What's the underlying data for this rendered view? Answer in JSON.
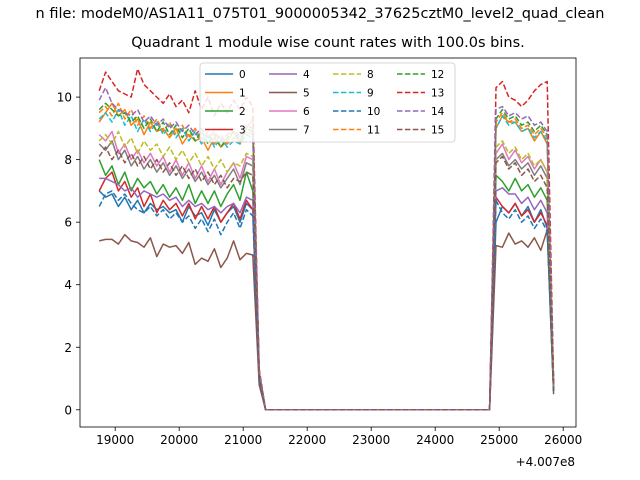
{
  "figure": {
    "suptitle": "n file: modeM0/AS1A11_075T01_9000005342_37625cztM0_level2_quad_clean",
    "offset_label": "+4.007e8"
  },
  "chart_data": {
    "type": "line",
    "title": "Quadrant 1 module wise count rates with 100.0s bins.",
    "xlabel": "",
    "ylabel": "",
    "x_offset": 400700000,
    "xlim": [
      18450,
      26200
    ],
    "ylim": [
      -0.55,
      11.25
    ],
    "xticks": [
      19000,
      20000,
      21000,
      22000,
      23000,
      24000,
      25000,
      26000
    ],
    "xtick_labels": [
      "19000",
      "20000",
      "21000",
      "22000",
      "23000",
      "24000",
      "25000",
      "26000"
    ],
    "yticks": [
      0,
      2,
      4,
      6,
      8,
      10
    ],
    "ytick_labels": [
      "0",
      "2",
      "4",
      "6",
      "8",
      "10"
    ],
    "grid": false,
    "legend": {
      "placement": "top-center",
      "ncol": 4
    },
    "colors": [
      "#1f77b4",
      "#ff7f0e",
      "#2ca02c",
      "#d62728",
      "#9467bd",
      "#8c564b",
      "#e377c2",
      "#7f7f7f",
      "#bcbd22",
      "#17becf"
    ],
    "x": [
      18750,
      18850,
      18950,
      19050,
      19150,
      19250,
      19350,
      19450,
      19550,
      19650,
      19750,
      19850,
      19950,
      20050,
      20150,
      20250,
      20350,
      20450,
      20550,
      20650,
      20750,
      20850,
      20950,
      21050,
      21150,
      21250,
      21350,
      21450,
      24850,
      24950,
      25050,
      25150,
      25250,
      25350,
      25450,
      25550,
      25650,
      25750,
      25850
    ],
    "series": [
      {
        "name": "0",
        "style": "solid",
        "values": [
          7.0,
          6.8,
          6.9,
          6.5,
          6.8,
          6.4,
          6.7,
          6.3,
          6.6,
          6.4,
          6.5,
          6.3,
          6.4,
          6.0,
          6.5,
          6.2,
          6.3,
          5.9,
          6.4,
          6.0,
          6.3,
          6.5,
          6.0,
          6.6,
          6.4,
          0.9,
          0.0,
          0.0,
          0.0,
          6.0,
          6.5,
          6.3,
          6.6,
          6.2,
          6.5,
          6.0,
          6.4,
          5.8,
          0.6
        ]
      },
      {
        "name": "1",
        "style": "solid",
        "values": [
          9.2,
          9.5,
          9.8,
          9.4,
          9.6,
          9.1,
          9.3,
          8.8,
          9.2,
          8.9,
          9.0,
          8.7,
          9.0,
          8.5,
          8.8,
          8.6,
          8.7,
          8.3,
          8.7,
          8.4,
          8.6,
          8.9,
          8.5,
          9.0,
          9.3,
          1.2,
          0.0,
          0.0,
          0.0,
          9.0,
          9.4,
          9.2,
          9.2,
          8.9,
          9.0,
          8.6,
          8.9,
          8.5,
          0.8
        ]
      },
      {
        "name": "2",
        "style": "solid",
        "values": [
          8.0,
          7.5,
          7.8,
          7.2,
          7.6,
          7.0,
          7.4,
          7.1,
          7.3,
          6.9,
          7.2,
          6.8,
          7.1,
          6.7,
          7.2,
          6.6,
          7.0,
          6.6,
          7.0,
          6.5,
          6.9,
          7.2,
          6.7,
          7.6,
          7.0,
          1.0,
          0.0,
          0.0,
          0.0,
          7.5,
          7.3,
          7.0,
          7.4,
          7.0,
          7.2,
          6.8,
          7.1,
          6.7,
          0.6
        ]
      },
      {
        "name": "3",
        "style": "solid",
        "values": [
          7.0,
          7.4,
          7.6,
          7.0,
          7.3,
          6.8,
          7.1,
          6.5,
          6.9,
          6.3,
          6.7,
          6.4,
          6.6,
          6.2,
          6.6,
          6.1,
          6.5,
          6.1,
          6.5,
          6.0,
          6.3,
          6.6,
          6.1,
          6.7,
          6.4,
          1.0,
          0.0,
          0.0,
          0.0,
          6.8,
          6.5,
          6.3,
          6.6,
          6.2,
          6.4,
          6.0,
          6.3,
          5.9,
          0.6
        ]
      },
      {
        "name": "4",
        "style": "solid",
        "values": [
          7.4,
          7.4,
          7.3,
          7.2,
          7.0,
          7.1,
          6.8,
          7.0,
          6.9,
          6.8,
          6.9,
          6.7,
          6.8,
          6.5,
          6.7,
          6.5,
          6.6,
          6.4,
          6.5,
          6.3,
          6.5,
          6.6,
          6.3,
          6.8,
          6.7,
          1.0,
          0.0,
          0.0,
          0.0,
          7.0,
          7.1,
          6.9,
          6.9,
          6.6,
          6.8,
          6.4,
          6.7,
          6.3,
          0.6
        ]
      },
      {
        "name": "5",
        "style": "solid",
        "values": [
          5.4,
          5.45,
          5.45,
          5.3,
          5.6,
          5.4,
          5.35,
          5.2,
          5.5,
          4.9,
          5.3,
          5.2,
          5.25,
          5.0,
          5.35,
          4.65,
          4.85,
          4.75,
          5.15,
          4.55,
          4.85,
          5.4,
          4.8,
          5.0,
          4.95,
          0.8,
          0.0,
          0.0,
          0.0,
          5.25,
          5.2,
          5.65,
          5.3,
          5.4,
          5.2,
          5.5,
          5.1,
          5.75,
          0.5
        ]
      },
      {
        "name": "6",
        "style": "solid",
        "values": [
          8.8,
          8.6,
          8.9,
          8.2,
          8.5,
          8.0,
          8.3,
          7.9,
          8.2,
          7.8,
          8.1,
          7.6,
          8.0,
          7.5,
          7.9,
          7.4,
          7.8,
          7.3,
          7.7,
          7.2,
          7.6,
          7.9,
          7.4,
          8.1,
          8.0,
          1.1,
          0.0,
          0.0,
          0.0,
          8.2,
          8.5,
          8.0,
          8.3,
          7.9,
          8.1,
          7.7,
          8.0,
          7.6,
          0.7
        ]
      },
      {
        "name": "7",
        "style": "solid",
        "values": [
          8.5,
          8.3,
          8.6,
          8.0,
          8.3,
          7.8,
          8.1,
          7.7,
          8.0,
          7.6,
          7.9,
          7.5,
          7.8,
          7.4,
          7.7,
          7.3,
          7.6,
          7.2,
          7.5,
          7.1,
          7.4,
          7.7,
          7.2,
          7.9,
          7.8,
          1.1,
          0.0,
          0.0,
          0.0,
          8.0,
          8.2,
          7.8,
          8.0,
          7.7,
          7.9,
          7.5,
          7.8,
          7.4,
          0.7
        ]
      },
      {
        "name": "8",
        "style": "dashed",
        "values": [
          8.6,
          8.8,
          8.5,
          8.9,
          8.4,
          8.7,
          8.2,
          8.6,
          8.3,
          8.5,
          8.1,
          8.4,
          8.0,
          8.3,
          7.9,
          8.2,
          7.8,
          8.1,
          7.7,
          8.0,
          7.6,
          7.9,
          7.8,
          8.2,
          8.1,
          1.1,
          0.0,
          0.0,
          0.0,
          8.4,
          8.6,
          8.2,
          8.4,
          8.0,
          8.2,
          7.8,
          8.0,
          7.6,
          0.7
        ]
      },
      {
        "name": "9",
        "style": "dashed",
        "values": [
          9.3,
          9.5,
          9.2,
          9.6,
          9.1,
          9.4,
          8.9,
          9.3,
          8.9,
          9.2,
          8.8,
          9.1,
          8.7,
          9.0,
          8.6,
          8.9,
          8.5,
          8.8,
          8.4,
          8.7,
          8.4,
          8.6,
          8.5,
          8.8,
          8.7,
          1.2,
          0.0,
          0.0,
          0.0,
          9.0,
          9.4,
          9.1,
          9.2,
          8.9,
          9.0,
          8.7,
          8.9,
          8.6,
          0.8
        ]
      },
      {
        "name": "10",
        "style": "dashed",
        "values": [
          6.5,
          6.9,
          7.0,
          6.7,
          6.9,
          6.6,
          6.4,
          6.3,
          6.5,
          6.2,
          6.4,
          6.1,
          6.3,
          6.0,
          6.2,
          5.8,
          6.1,
          5.7,
          6.1,
          5.6,
          6.0,
          6.3,
          5.8,
          6.4,
          6.2,
          0.9,
          0.0,
          0.0,
          0.0,
          6.7,
          6.3,
          6.1,
          6.4,
          6.0,
          6.2,
          5.8,
          6.1,
          5.7,
          0.6
        ]
      },
      {
        "name": "11",
        "style": "dashed",
        "values": [
          9.5,
          9.7,
          9.4,
          9.8,
          9.3,
          9.6,
          9.1,
          9.4,
          9.0,
          9.3,
          8.9,
          9.2,
          8.8,
          9.1,
          8.7,
          9.0,
          8.6,
          8.9,
          8.5,
          8.8,
          8.5,
          8.7,
          8.6,
          8.9,
          8.8,
          1.2,
          0.0,
          0.0,
          0.0,
          9.2,
          9.5,
          9.2,
          9.3,
          9.0,
          9.1,
          8.8,
          9.0,
          8.7,
          0.8
        ]
      },
      {
        "name": "12",
        "style": "dashed",
        "values": [
          9.6,
          9.8,
          9.6,
          9.4,
          9.5,
          9.2,
          9.4,
          9.0,
          9.3,
          8.9,
          9.2,
          8.8,
          9.1,
          8.7,
          9.0,
          8.6,
          8.9,
          8.5,
          8.8,
          8.4,
          8.7,
          8.9,
          8.6,
          9.0,
          8.9,
          1.2,
          0.0,
          0.0,
          0.0,
          9.3,
          9.6,
          9.3,
          9.4,
          9.1,
          9.2,
          8.9,
          9.1,
          8.8,
          0.8
        ]
      },
      {
        "name": "13",
        "style": "dashed",
        "values": [
          10.2,
          10.8,
          10.5,
          10.2,
          10.1,
          10.0,
          10.9,
          10.4,
          10.2,
          10.0,
          9.8,
          10.1,
          9.7,
          9.9,
          9.5,
          10.2,
          9.6,
          10.0,
          9.4,
          9.8,
          9.5,
          9.9,
          9.6,
          10.0,
          9.7,
          1.3,
          0.0,
          0.0,
          0.0,
          10.3,
          10.5,
          10.0,
          9.9,
          9.7,
          9.9,
          10.2,
          10.4,
          10.5,
          0.9
        ]
      },
      {
        "name": "14",
        "style": "dashed",
        "values": [
          9.9,
          10.3,
          9.8,
          9.6,
          9.5,
          9.4,
          9.6,
          9.2,
          9.4,
          9.1,
          9.3,
          9.0,
          9.2,
          8.9,
          9.1,
          8.8,
          9.0,
          8.7,
          8.9,
          8.6,
          8.8,
          9.0,
          8.7,
          9.1,
          9.0,
          1.2,
          0.0,
          0.0,
          0.0,
          9.6,
          9.7,
          9.4,
          9.5,
          9.3,
          9.4,
          9.1,
          9.2,
          8.9,
          0.8
        ]
      },
      {
        "name": "15",
        "style": "dashed",
        "values": [
          8.1,
          8.4,
          8.0,
          8.3,
          7.9,
          8.2,
          7.8,
          8.1,
          7.7,
          8.0,
          7.6,
          7.9,
          7.5,
          7.8,
          7.4,
          7.7,
          7.3,
          7.6,
          7.2,
          7.5,
          7.1,
          7.4,
          7.3,
          7.6,
          7.5,
          1.0,
          0.0,
          0.0,
          0.0,
          7.9,
          8.1,
          7.7,
          7.9,
          7.5,
          7.7,
          7.3,
          7.5,
          7.1,
          0.7
        ]
      }
    ]
  }
}
